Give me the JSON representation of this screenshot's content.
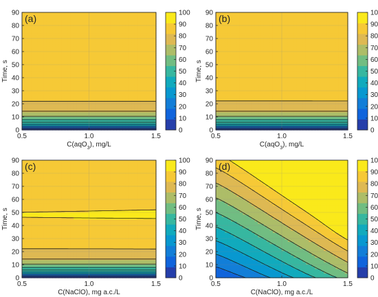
{
  "colorbar": {
    "ticks": [
      "0",
      "10",
      "20",
      "30",
      "40",
      "50",
      "60",
      "70",
      "80",
      "90",
      "100"
    ]
  },
  "chart_data": [
    {
      "type": "heatmap",
      "panel_label": "(a)",
      "xlabel": "C(aqO",
      "xlabel_sub": "3",
      "xlabel_tail": "), mg/L",
      "ylabel": "Time, s",
      "x_ticks": [
        "0.5",
        "1.0",
        "1.5"
      ],
      "y_ticks": [
        "0",
        "10",
        "20",
        "30",
        "40",
        "50",
        "60",
        "70",
        "80",
        "90"
      ],
      "xlim": [
        0.5,
        1.5
      ],
      "ylim": [
        0,
        90
      ],
      "zlim": [
        0,
        100
      ],
      "grid": true,
      "model": "a"
    },
    {
      "type": "heatmap",
      "panel_label": "(b)",
      "xlabel": "C(aqO",
      "xlabel_sub": "3",
      "xlabel_tail": "), mg/L",
      "ylabel": "Time, s",
      "x_ticks": [
        "0.5",
        "1.0",
        "1.5"
      ],
      "y_ticks": [
        "0",
        "10",
        "20",
        "30",
        "40",
        "50",
        "60",
        "70",
        "80",
        "90"
      ],
      "xlim": [
        0.5,
        1.5
      ],
      "ylim": [
        0,
        90
      ],
      "zlim": [
        0,
        100
      ],
      "grid": true,
      "model": "b"
    },
    {
      "type": "heatmap",
      "panel_label": "(c)",
      "xlabel": "C(NaClO), mg a.c./L",
      "xlabel_sub": "",
      "xlabel_tail": "",
      "ylabel": "Time, s",
      "x_ticks": [
        "0.5",
        "1.0",
        "1.5"
      ],
      "y_ticks": [
        "0",
        "10",
        "20",
        "30",
        "40",
        "50",
        "60",
        "70",
        "80",
        "90"
      ],
      "xlim": [
        0.5,
        1.5
      ],
      "ylim": [
        0,
        90
      ],
      "zlim": [
        0,
        100
      ],
      "grid": true,
      "model": "c"
    },
    {
      "type": "heatmap",
      "panel_label": "(d)",
      "xlabel": "C(NaClO), mg a.c./L",
      "xlabel_sub": "",
      "xlabel_tail": "",
      "ylabel": "Time, s",
      "x_ticks": [
        "0.5",
        "1.0",
        "1.5"
      ],
      "y_ticks": [
        "0",
        "10",
        "20",
        "30",
        "40",
        "50",
        "60",
        "70",
        "80",
        "90"
      ],
      "xlim": [
        0.5,
        1.5
      ],
      "ylim": [
        0,
        90
      ],
      "zlim": [
        0,
        100
      ],
      "grid": true,
      "model": "d"
    }
  ]
}
